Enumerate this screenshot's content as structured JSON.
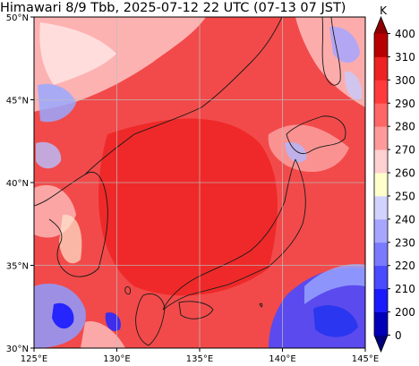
{
  "title": "Himawari 8/9 Tbb, 2025-07-12 22 UTC (07-13 07 JST)",
  "lat_labels": [
    "50°N",
    "45°N",
    "40°N",
    "35°N",
    "30°N"
  ],
  "lon_labels": [
    "125°E",
    "130°E",
    "135°E",
    "140°E",
    "145°E"
  ],
  "colorbar": {
    "unit": "K",
    "ticks": [
      "400",
      "310",
      "300",
      "290",
      "280",
      "270",
      "260",
      "250",
      "240",
      "230",
      "220",
      "210",
      "200",
      "0"
    ],
    "colors": [
      "#00007a",
      "#0000b8",
      "#1a1aff",
      "#4a4aff",
      "#7a7aff",
      "#a6a6ff",
      "#d2d2ff",
      "#ffffcc",
      "#ffd0d0",
      "#ff9a9a",
      "#ff6666",
      "#ff3b3b",
      "#ee2222",
      "#b80000",
      "#8b0000"
    ]
  },
  "colors": {
    "warm_fill": "#f24a4a",
    "cloud_pink": "#ffc4c4",
    "cloud_cold": "#9aa8ff",
    "deep_cold": "#2233ee",
    "coast": "#1a1a1a",
    "grid": "#bdbdbd"
  }
}
